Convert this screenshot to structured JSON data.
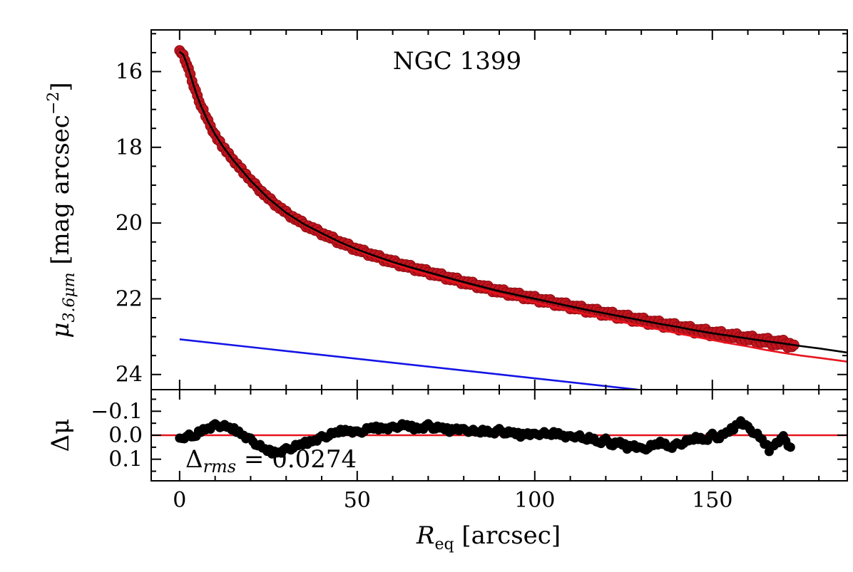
{
  "chart_data": [
    {
      "panel": "main",
      "type": "scatter",
      "title": "NGC 1399",
      "ylabel_main": "μ",
      "ylabel_sub": "3.6μm",
      "ylabel_units": "[mag arcsec",
      "ylabel_exp": "−2",
      "ylabel_close": "]",
      "xlim": [
        -8,
        188
      ],
      "ylim": [
        24.4,
        14.9
      ],
      "y_inverted": true,
      "yticks": [
        16,
        18,
        20,
        22,
        24
      ],
      "ytick_labels": [
        "16",
        "18",
        "20",
        "22",
        "24"
      ],
      "yminor_step": 0.5,
      "xticks": [
        0,
        50,
        100,
        150
      ],
      "xminor_step": 10,
      "series": [
        {
          "name": "data",
          "style": "scatter",
          "color": "#c0141e",
          "edge_color": "#8a0a10",
          "x": [
            0,
            1,
            2,
            3,
            4,
            5,
            6,
            8,
            10,
            12,
            15,
            18,
            20,
            25,
            30,
            35,
            40,
            45,
            50,
            55,
            60,
            65,
            70,
            75,
            80,
            85,
            90,
            95,
            100,
            105,
            110,
            115,
            120,
            125,
            130,
            135,
            140,
            145,
            150,
            155,
            160,
            165,
            170,
            173
          ],
          "y": [
            15.48,
            15.55,
            15.78,
            16.08,
            16.38,
            16.66,
            16.9,
            17.32,
            17.66,
            17.95,
            18.33,
            18.66,
            18.88,
            19.35,
            19.73,
            20.03,
            20.27,
            20.5,
            20.7,
            20.87,
            21.03,
            21.17,
            21.3,
            21.43,
            21.56,
            21.68,
            21.8,
            21.9,
            22.0,
            22.1,
            22.2,
            22.3,
            22.39,
            22.48,
            22.57,
            22.66,
            22.74,
            22.83,
            22.91,
            22.98,
            23.05,
            23.12,
            23.18,
            23.22
          ]
        },
        {
          "name": "total model",
          "style": "line",
          "color": "#000000",
          "x": [
            0,
            1,
            2,
            3,
            4,
            5,
            6,
            8,
            10,
            12,
            15,
            18,
            20,
            25,
            30,
            35,
            40,
            45,
            50,
            55,
            60,
            65,
            70,
            75,
            80,
            85,
            90,
            95,
            100,
            105,
            110,
            115,
            120,
            125,
            130,
            135,
            140,
            145,
            150,
            155,
            160,
            165,
            170,
            175,
            180,
            188
          ],
          "y": [
            15.48,
            15.55,
            15.78,
            16.08,
            16.38,
            16.66,
            16.9,
            17.32,
            17.66,
            17.95,
            18.33,
            18.66,
            18.88,
            19.35,
            19.73,
            20.03,
            20.27,
            20.5,
            20.7,
            20.87,
            21.03,
            21.17,
            21.3,
            21.43,
            21.56,
            21.68,
            21.8,
            21.9,
            22.0,
            22.1,
            22.2,
            22.3,
            22.39,
            22.48,
            22.57,
            22.66,
            22.74,
            22.83,
            22.91,
            22.98,
            23.05,
            23.12,
            23.18,
            23.25,
            23.31,
            23.42
          ]
        },
        {
          "name": "bulge (Sérsic) component",
          "style": "line",
          "color": "#e8141e",
          "x": [
            0,
            1,
            2,
            3,
            4,
            5,
            6,
            8,
            10,
            12,
            15,
            18,
            20,
            25,
            30,
            35,
            40,
            45,
            50,
            55,
            60,
            65,
            70,
            75,
            80,
            85,
            90,
            95,
            100,
            105,
            110,
            115,
            120,
            125,
            130,
            135,
            140,
            145,
            150,
            155,
            160,
            165,
            170,
            175,
            180,
            188
          ],
          "y": [
            15.48,
            15.55,
            15.78,
            16.08,
            16.38,
            16.66,
            16.9,
            17.32,
            17.66,
            17.95,
            18.33,
            18.66,
            18.88,
            19.36,
            19.74,
            20.05,
            20.3,
            20.53,
            20.73,
            20.91,
            21.08,
            21.23,
            21.37,
            21.5,
            21.63,
            21.76,
            21.88,
            21.99,
            22.1,
            22.21,
            22.31,
            22.42,
            22.52,
            22.62,
            22.72,
            22.81,
            22.91,
            23.0,
            23.09,
            23.18,
            23.26,
            23.35,
            23.43,
            23.5,
            23.56,
            23.66
          ]
        },
        {
          "name": "exponential component",
          "style": "line",
          "color": "#1414e6",
          "x": [
            0,
            129
          ],
          "y": [
            23.07,
            24.4
          ]
        }
      ]
    },
    {
      "panel": "residuals",
      "type": "scatter",
      "ylabel": "Δμ",
      "xlabel_main": "R",
      "xlabel_sub": "eq",
      "xlabel_units": "[arcsec]",
      "xlim": [
        -8,
        188
      ],
      "ylim": [
        0.19,
        -0.19
      ],
      "y_inverted": true,
      "yticks": [
        -0.1,
        0.0,
        0.1
      ],
      "ytick_labels": [
        "−0.1",
        "0.0",
        "0.1"
      ],
      "yminor_step": 0.05,
      "xticks": [
        0,
        50,
        100,
        150
      ],
      "xtick_labels": [
        "0",
        "50",
        "100",
        "150"
      ],
      "xminor_step": 10,
      "annotation_main": "Δ",
      "annotation_sub": "rms",
      "annotation_value": "= 0.0274",
      "zero_line_color": "#e8141e",
      "series": [
        {
          "name": "residuals",
          "style": "scatter",
          "color": "#000000",
          "x": [
            0,
            2,
            4,
            6,
            8,
            10,
            12,
            14,
            16,
            18,
            20,
            22,
            24,
            26,
            28,
            30,
            32,
            34,
            36,
            38,
            40,
            42,
            44,
            46,
            48,
            50,
            52,
            54,
            56,
            58,
            60,
            62,
            64,
            66,
            68,
            70,
            72,
            74,
            76,
            78,
            80,
            82,
            84,
            86,
            88,
            90,
            92,
            94,
            96,
            98,
            100,
            102,
            104,
            106,
            108,
            110,
            112,
            114,
            116,
            118,
            120,
            122,
            124,
            126,
            128,
            130,
            132,
            134,
            136,
            138,
            140,
            142,
            144,
            146,
            148,
            150,
            152,
            154,
            156,
            158,
            160,
            162,
            164,
            166,
            168,
            170,
            172
          ],
          "y": [
            0.02,
            0.0,
            0.01,
            -0.02,
            -0.03,
            -0.04,
            -0.04,
            -0.03,
            -0.02,
            0.0,
            0.02,
            0.04,
            0.06,
            0.07,
            0.07,
            0.06,
            0.05,
            0.04,
            0.03,
            0.02,
            0.01,
            0.0,
            -0.01,
            -0.02,
            -0.02,
            -0.01,
            -0.02,
            -0.03,
            -0.03,
            -0.03,
            -0.03,
            -0.04,
            -0.04,
            -0.03,
            -0.03,
            -0.04,
            -0.03,
            -0.03,
            -0.02,
            -0.03,
            -0.02,
            -0.02,
            -0.01,
            -0.02,
            -0.01,
            -0.02,
            -0.01,
            -0.01,
            0.0,
            -0.01,
            0.0,
            -0.01,
            0.0,
            -0.01,
            0.0,
            0.01,
            0.0,
            0.02,
            0.01,
            0.03,
            0.02,
            0.04,
            0.03,
            0.05,
            0.04,
            0.06,
            0.05,
            0.04,
            0.03,
            0.05,
            0.04,
            0.03,
            0.02,
            0.01,
            0.02,
            0.0,
            0.01,
            -0.01,
            -0.03,
            -0.06,
            -0.03,
            -0.01,
            0.02,
            0.06,
            0.03,
            0.01,
            0.05
          ]
        }
      ]
    }
  ]
}
